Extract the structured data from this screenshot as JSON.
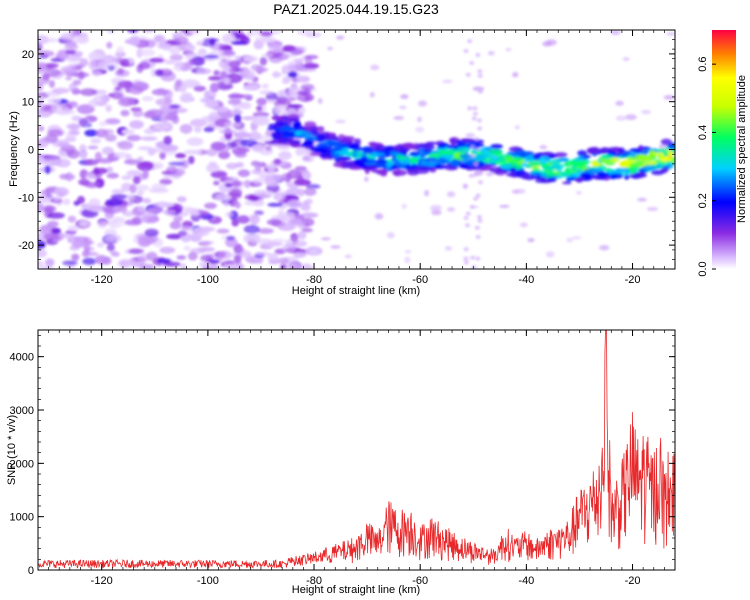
{
  "title": "PAZ1.2025.044.19.15.G23",
  "chart_data": [
    {
      "type": "heatmap",
      "xlabel": "Height of straight line (km)",
      "ylabel": "Frequency (Hz)",
      "xlim": [
        -132,
        -12
      ],
      "ylim": [
        -25,
        25
      ],
      "xticks": [
        -120,
        -100,
        -80,
        -60,
        -40,
        -20
      ],
      "yticks": [
        -20,
        -10,
        0,
        10,
        20
      ],
      "colorbar": {
        "label": "Normalized spectral amplitude",
        "range": [
          0.0,
          0.7
        ],
        "ticks": [
          0.0,
          0.2,
          0.4,
          0.6
        ],
        "tick_labels": [
          "0.0",
          "0.2",
          "0.4",
          "0.6"
        ]
      },
      "ridge": {
        "description_values": [
          [
            -88,
            4
          ],
          [
            -84,
            4
          ],
          [
            -80,
            2
          ],
          [
            -76,
            0
          ],
          [
            -72,
            -1
          ],
          [
            -68,
            -2
          ],
          [
            -64,
            -2
          ],
          [
            -60,
            -2
          ],
          [
            -56,
            -1
          ],
          [
            -52,
            -1
          ],
          [
            -48,
            -1
          ],
          [
            -44,
            -2
          ],
          [
            -40,
            -3
          ],
          [
            -36,
            -4
          ],
          [
            -32,
            -4
          ],
          [
            -28,
            -3
          ],
          [
            -24,
            -3
          ],
          [
            -20,
            -3
          ],
          [
            -16,
            -2
          ],
          [
            -12,
            -1
          ]
        ],
        "peak_amplitude": 0.7
      },
      "noise_region": [
        -132,
        -84
      ]
    },
    {
      "type": "line",
      "xlabel": "Height of straight line (km)",
      "ylabel": "SNR (10 * v/v)",
      "xlim": [
        -132,
        -12
      ],
      "ylim": [
        0,
        4500
      ],
      "xticks": [
        -120,
        -100,
        -80,
        -60,
        -40,
        -20
      ],
      "yticks": [
        0,
        1000,
        2000,
        3000,
        4000
      ],
      "color": "#e8282a",
      "series": [
        {
          "x": [
            -132,
            -120,
            -110,
            -100,
            -90,
            -85,
            -82,
            -80,
            -76,
            -72,
            -70,
            -68,
            -66,
            -64,
            -62,
            -60,
            -58,
            -56,
            -54,
            -52,
            -50,
            -48,
            -46,
            -44,
            -42,
            -40,
            -38,
            -36,
            -34,
            -32,
            -30,
            -28,
            -26,
            -25,
            -24,
            -22,
            -20,
            -19,
            -18,
            -16,
            -15,
            -14,
            -13,
            -12
          ],
          "values": [
            150,
            150,
            150,
            150,
            150,
            200,
            250,
            300,
            450,
            600,
            900,
            700,
            1300,
            1100,
            1200,
            800,
            1000,
            850,
            700,
            600,
            500,
            400,
            350,
            800,
            600,
            700,
            550,
            750,
            800,
            950,
            1500,
            1800,
            2300,
            4500,
            1600,
            2000,
            3000,
            2500,
            2700,
            2200,
            2900,
            1900,
            2400,
            2100
          ]
        }
      ]
    }
  ]
}
